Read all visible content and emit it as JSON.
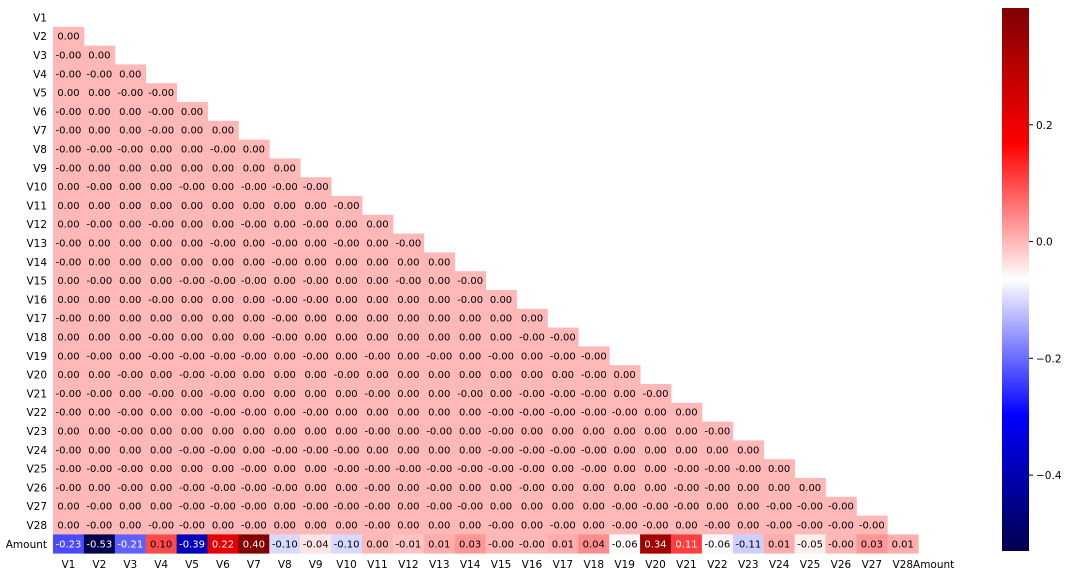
{
  "chart_data": {
    "type": "heatmap",
    "title": "",
    "xlabel": "",
    "ylabel": "",
    "mask": "upper-triangle-including-diagonal",
    "labels": [
      "V1",
      "V2",
      "V3",
      "V4",
      "V5",
      "V6",
      "V7",
      "V8",
      "V9",
      "V10",
      "V11",
      "V12",
      "V13",
      "V14",
      "V15",
      "V16",
      "V17",
      "V18",
      "V19",
      "V20",
      "V21",
      "V22",
      "V23",
      "V24",
      "V25",
      "V26",
      "V27",
      "V28",
      "Amount"
    ],
    "rows": [
      [],
      [
        "0.00"
      ],
      [
        "-0.00",
        "0.00"
      ],
      [
        "-0.00",
        "-0.00",
        "0.00"
      ],
      [
        "0.00",
        "0.00",
        "-0.00",
        "-0.00"
      ],
      [
        "-0.00",
        "0.00",
        "0.00",
        "-0.00",
        "0.00"
      ],
      [
        "-0.00",
        "0.00",
        "0.00",
        "-0.00",
        "0.00",
        "0.00"
      ],
      [
        "-0.00",
        "-0.00",
        "-0.00",
        "0.00",
        "0.00",
        "-0.00",
        "0.00"
      ],
      [
        "-0.00",
        "0.00",
        "0.00",
        "0.00",
        "0.00",
        "0.00",
        "0.00",
        "0.00"
      ],
      [
        "0.00",
        "-0.00",
        "0.00",
        "0.00",
        "-0.00",
        "0.00",
        "-0.00",
        "-0.00",
        "-0.00"
      ],
      [
        "0.00",
        "0.00",
        "0.00",
        "0.00",
        "0.00",
        "0.00",
        "0.00",
        "0.00",
        "0.00",
        "-0.00"
      ],
      [
        "0.00",
        "-0.00",
        "0.00",
        "-0.00",
        "0.00",
        "0.00",
        "-0.00",
        "0.00",
        "-0.00",
        "0.00",
        "0.00"
      ],
      [
        "-0.00",
        "0.00",
        "0.00",
        "0.00",
        "0.00",
        "-0.00",
        "0.00",
        "-0.00",
        "0.00",
        "-0.00",
        "0.00",
        "-0.00"
      ],
      [
        "-0.00",
        "0.00",
        "0.00",
        "0.00",
        "0.00",
        "0.00",
        "0.00",
        "-0.00",
        "0.00",
        "0.00",
        "0.00",
        "0.00",
        "0.00"
      ],
      [
        "0.00",
        "-0.00",
        "0.00",
        "0.00",
        "-0.00",
        "-0.00",
        "-0.00",
        "0.00",
        "-0.00",
        "0.00",
        "0.00",
        "-0.00",
        "0.00",
        "-0.00"
      ],
      [
        "0.00",
        "0.00",
        "0.00",
        "-0.00",
        "0.00",
        "0.00",
        "0.00",
        "-0.00",
        "-0.00",
        "0.00",
        "0.00",
        "0.00",
        "0.00",
        "-0.00",
        "0.00"
      ],
      [
        "-0.00",
        "0.00",
        "0.00",
        "0.00",
        "0.00",
        "0.00",
        "0.00",
        "-0.00",
        "0.00",
        "0.00",
        "0.00",
        "0.00",
        "0.00",
        "0.00",
        "0.00",
        "0.00"
      ],
      [
        "0.00",
        "0.00",
        "0.00",
        "-0.00",
        "0.00",
        "0.00",
        "0.00",
        "-0.00",
        "0.00",
        "0.00",
        "0.00",
        "0.00",
        "0.00",
        "0.00",
        "0.00",
        "-0.00",
        "-0.00"
      ],
      [
        "0.00",
        "-0.00",
        "0.00",
        "-0.00",
        "-0.00",
        "-0.00",
        "-0.00",
        "0.00",
        "-0.00",
        "0.00",
        "-0.00",
        "0.00",
        "-0.00",
        "0.00",
        "-0.00",
        "0.00",
        "-0.00",
        "-0.00"
      ],
      [
        "0.00",
        "0.00",
        "-0.00",
        "0.00",
        "-0.00",
        "-0.00",
        "0.00",
        "0.00",
        "0.00",
        "-0.00",
        "0.00",
        "0.00",
        "0.00",
        "0.00",
        "0.00",
        "0.00",
        "0.00",
        "-0.00",
        "0.00"
      ],
      [
        "-0.00",
        "-0.00",
        "0.00",
        "-0.00",
        "0.00",
        "-0.00",
        "0.00",
        "0.00",
        "0.00",
        "0.00",
        "-0.00",
        "0.00",
        "0.00",
        "-0.00",
        "0.00",
        "-0.00",
        "-0.00",
        "-0.00",
        "0.00",
        "-0.00"
      ],
      [
        "-0.00",
        "0.00",
        "-0.00",
        "0.00",
        "0.00",
        "-0.00",
        "-0.00",
        "0.00",
        "-0.00",
        "0.00",
        "0.00",
        "0.00",
        "0.00",
        "0.00",
        "-0.00",
        "-0.00",
        "-0.00",
        "-0.00",
        "-0.00",
        "0.00",
        "0.00"
      ],
      [
        "0.00",
        "0.00",
        "-0.00",
        "0.00",
        "0.00",
        "0.00",
        "0.00",
        "0.00",
        "0.00",
        "0.00",
        "-0.00",
        "0.00",
        "-0.00",
        "0.00",
        "-0.00",
        "0.00",
        "0.00",
        "0.00",
        "0.00",
        "0.00",
        "0.00",
        "-0.00"
      ],
      [
        "-0.00",
        "0.00",
        "0.00",
        "0.00",
        "-0.00",
        "-0.00",
        "0.00",
        "-0.00",
        "-0.00",
        "-0.00",
        "0.00",
        "0.00",
        "0.00",
        "0.00",
        "-0.00",
        "-0.00",
        "-0.00",
        "-0.00",
        "0.00",
        "0.00",
        "0.00",
        "0.00",
        "0.00"
      ],
      [
        "-0.00",
        "-0.00",
        "-0.00",
        "0.00",
        "0.00",
        "0.00",
        "-0.00",
        "0.00",
        "0.00",
        "-0.00",
        "-0.00",
        "-0.00",
        "-0.00",
        "-0.00",
        "-0.00",
        "-0.00",
        "0.00",
        "-0.00",
        "0.00",
        "0.00",
        "-0.00",
        "-0.00",
        "-0.00",
        "0.00"
      ],
      [
        "-0.00",
        "0.00",
        "-0.00",
        "0.00",
        "-0.00",
        "-0.00",
        "-0.00",
        "-0.00",
        "0.00",
        "0.00",
        "-0.00",
        "0.00",
        "-0.00",
        "0.00",
        "0.00",
        "-0.00",
        "0.00",
        "0.00",
        "0.00",
        "0.00",
        "-0.00",
        "-0.00",
        "0.00",
        "0.00",
        "0.00"
      ],
      [
        "0.00",
        "-0.00",
        "0.00",
        "0.00",
        "-0.00",
        "-0.00",
        "-0.00",
        "0.00",
        "-0.00",
        "-0.00",
        "-0.00",
        "0.00",
        "-0.00",
        "-0.00",
        "0.00",
        "0.00",
        "0.00",
        "0.00",
        "-0.00",
        "-0.00",
        "-0.00",
        "0.00",
        "0.00",
        "-0.00",
        "-0.00",
        "-0.00"
      ],
      [
        "0.00",
        "-0.00",
        "0.00",
        "-0.00",
        "-0.00",
        "0.00",
        "-0.00",
        "0.00",
        "0.00",
        "0.00",
        "-0.00",
        "0.00",
        "0.00",
        "0.00",
        "-0.00",
        "0.00",
        "-0.00",
        "0.00",
        "-0.00",
        "-0.00",
        "0.00",
        "-0.00",
        "0.00",
        "-0.00",
        "-0.00",
        "-0.00",
        "-0.00"
      ],
      [
        "-0.23",
        "-0.53",
        "-0.21",
        "0.10",
        "-0.39",
        "0.22",
        "0.40",
        "-0.10",
        "-0.04",
        "-0.10",
        "0.00",
        "-0.01",
        "0.01",
        "0.03",
        "-0.00",
        "-0.00",
        "0.01",
        "0.04",
        "-0.06",
        "0.34",
        "0.11",
        "-0.06",
        "-0.11",
        "0.01",
        "-0.05",
        "-0.00",
        "0.03",
        "0.01"
      ]
    ],
    "colorbar": {
      "colormap": "seismic",
      "vmin": -0.53,
      "vmax": 0.4,
      "ticks": [
        -0.4,
        -0.2,
        0.0,
        0.2
      ],
      "tick_labels": [
        "−0.4",
        "−0.2",
        "0.0",
        "0.2"
      ]
    }
  }
}
